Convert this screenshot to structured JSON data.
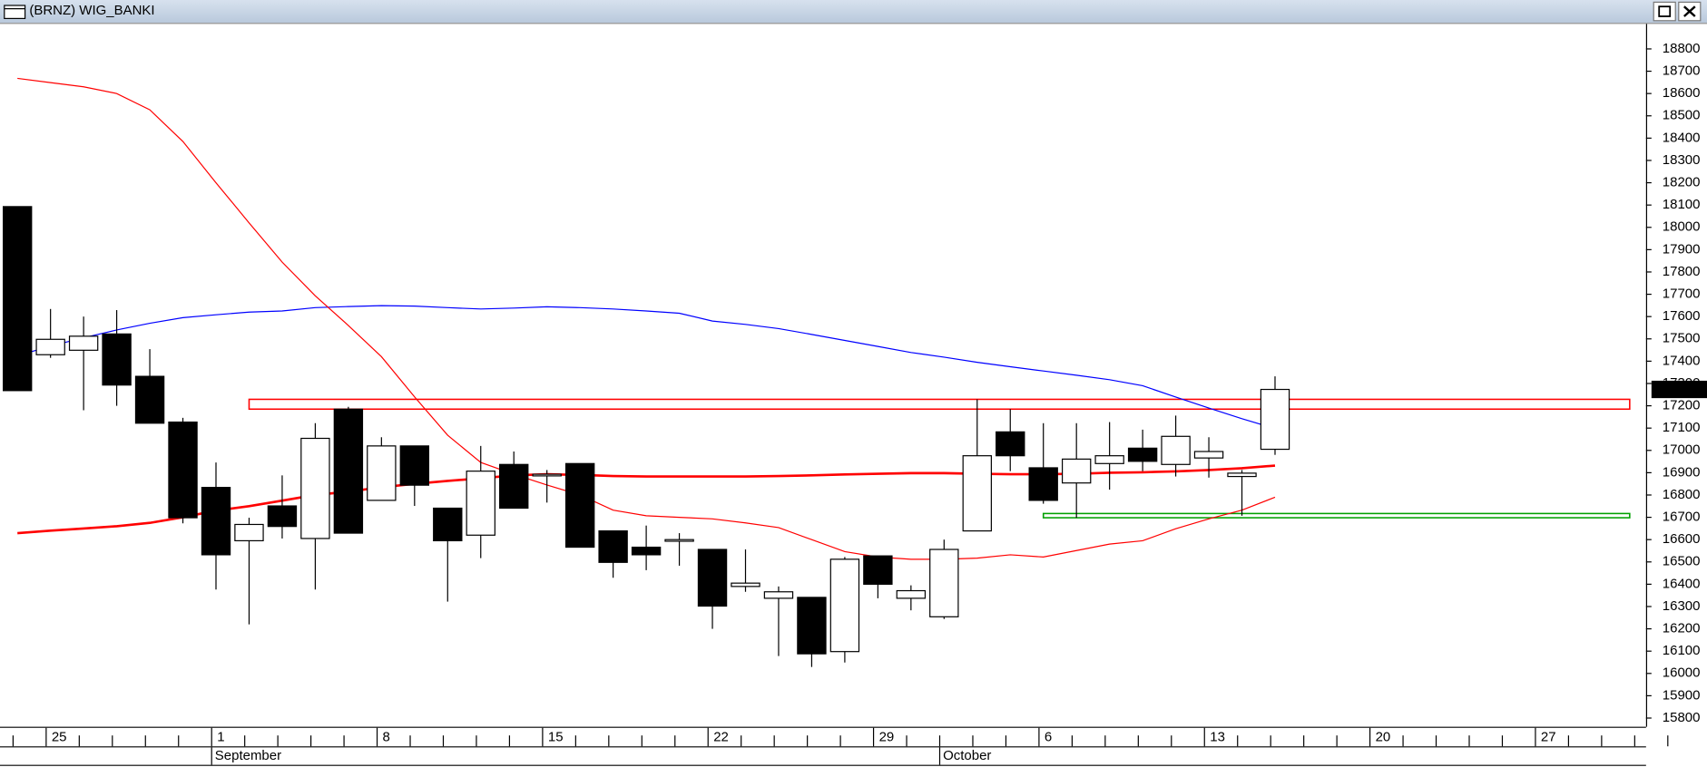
{
  "window": {
    "title": "(BRNZ) WIG_BANKI"
  },
  "chart_data": {
    "type": "candlestick",
    "categories": [
      null,
      "25",
      null,
      null,
      null,
      null,
      "1",
      null,
      null,
      null,
      null,
      "8",
      null,
      null,
      null,
      null,
      "15",
      null,
      null,
      null,
      null,
      "22",
      null,
      null,
      null,
      null,
      "29",
      null,
      null,
      null,
      null,
      "6",
      null,
      null,
      null,
      null,
      "13",
      null,
      null,
      null,
      null,
      "20",
      null,
      null,
      null,
      null,
      "27",
      null,
      null,
      null,
      null
    ],
    "month_labels": [
      null,
      null,
      null,
      null,
      null,
      null,
      "September",
      null,
      null,
      null,
      null,
      null,
      null,
      null,
      null,
      null,
      null,
      null,
      null,
      null,
      null,
      null,
      null,
      null,
      null,
      null,
      null,
      null,
      "October",
      null,
      null,
      null,
      null,
      null,
      null,
      null,
      null,
      null,
      null,
      null,
      null,
      null,
      null,
      null,
      null,
      null,
      null,
      null,
      null,
      null,
      null
    ],
    "open": [
      18093,
      17429,
      17449,
      17522,
      17332,
      17127,
      16834,
      16595,
      16751,
      16605,
      17185,
      16776,
      17020,
      16741,
      16620,
      16937,
      16893,
      16941,
      16639,
      16566,
      16600,
      16556,
      16390,
      16337,
      16341,
      16098,
      16527,
      16337,
      16254,
      16639,
      17083,
      16922,
      16854,
      16941,
      17010,
      16937,
      16966,
      16883,
      17005,
      null,
      null,
      null,
      null,
      null,
      null,
      null,
      null,
      null,
      null,
      null,
      null
    ],
    "high": [
      18093,
      17634,
      17600,
      17629,
      17454,
      17146,
      16946,
      16698,
      16888,
      17122,
      17195,
      17059,
      17020,
      16741,
      17020,
      16995,
      16912,
      16941,
      16639,
      16663,
      16629,
      16556,
      16556,
      16390,
      16341,
      16522,
      16527,
      16395,
      16600,
      17229,
      17185,
      17122,
      17122,
      17127,
      17093,
      17156,
      17059,
      16912,
      17332,
      null,
      null,
      null,
      null,
      null,
      null,
      null,
      null,
      null,
      null,
      null,
      null
    ],
    "low": [
      17268,
      17415,
      17180,
      17200,
      17122,
      16673,
      16376,
      16220,
      16605,
      16376,
      16629,
      16776,
      16751,
      16322,
      16517,
      16741,
      16766,
      16566,
      16429,
      16463,
      16483,
      16200,
      16366,
      16078,
      16029,
      16049,
      16337,
      16283,
      16244,
      16639,
      16907,
      16761,
      16698,
      16824,
      16907,
      16883,
      16878,
      16707,
      16980,
      null,
      null,
      null,
      null,
      null,
      null,
      null,
      null,
      null,
      null,
      null,
      null
    ],
    "close": [
      17268,
      17498,
      17512,
      17293,
      17122,
      16698,
      16532,
      16668,
      16659,
      17054,
      16629,
      17020,
      16844,
      16595,
      16907,
      16741,
      16893,
      16566,
      16498,
      16532,
      16600,
      16302,
      16405,
      16366,
      16088,
      16512,
      16400,
      16371,
      16556,
      16976,
      16976,
      16776,
      16961,
      16976,
      16951,
      17063,
      16995,
      16898,
      17273.36,
      null,
      null,
      null,
      null,
      null,
      null,
      null,
      null,
      null,
      null,
      null,
      null
    ],
    "up_color": "#ffffff",
    "down_color": "#000000",
    "series": [
      {
        "color": "#0000ff",
        "width": 1,
        "values": [
          17424,
          17468,
          17505,
          17540,
          17570,
          17595,
          17608,
          17620,
          17625,
          17640,
          17645,
          17649,
          17647,
          17640,
          17634,
          17638,
          17644,
          17640,
          17634,
          17625,
          17615,
          17580,
          17565,
          17546,
          17520,
          17493,
          17466,
          17439,
          17418,
          17395,
          17375,
          17356,
          17337,
          17317,
          17290,
          17239,
          17190,
          17142,
          17098,
          null,
          null,
          null,
          null,
          null,
          null,
          null,
          null,
          null,
          null,
          null,
          null
        ]
      },
      {
        "color": "#ff0000",
        "width": 2.2,
        "values": [
          16629,
          16640,
          16650,
          16660,
          16675,
          16700,
          16730,
          16750,
          16775,
          16800,
          16815,
          16835,
          16850,
          16863,
          16875,
          16888,
          16893,
          16890,
          16885,
          16883,
          16883,
          16883,
          16883,
          16885,
          16888,
          16892,
          16895,
          16898,
          16898,
          16895,
          16893,
          16893,
          16895,
          16900,
          16902,
          16906,
          16912,
          16920,
          16932,
          null,
          null,
          null,
          null,
          null,
          null,
          null,
          null,
          null,
          null,
          null,
          null
        ]
      },
      {
        "color": "#ff0000",
        "width": 1,
        "values": [
          18668,
          18649,
          18630,
          18600,
          18527,
          18385,
          18200,
          18020,
          17844,
          17693,
          17560,
          17420,
          17240,
          17068,
          16946,
          16893,
          16845,
          16800,
          16732,
          16707,
          16700,
          16693,
          16675,
          16654,
          16600,
          16546,
          16522,
          16512,
          16512,
          16517,
          16532,
          16522,
          16551,
          16580,
          16595,
          16649,
          16693,
          16732,
          16790,
          null,
          null,
          null,
          null,
          null,
          null,
          null,
          null,
          null,
          null,
          null,
          null
        ]
      }
    ],
    "zones": [
      {
        "color": "#ff0000",
        "low": 17185,
        "high": 17229,
        "start": 7
      },
      {
        "color": "#00a000",
        "low": 16698,
        "high": 16717,
        "start": 31
      }
    ],
    "last_price": 17273.36,
    "last_price_color": "#00ff00",
    "ylim": [
      15761,
      18912
    ],
    "yticks": [
      15800,
      15900,
      16000,
      16100,
      16200,
      16300,
      16400,
      16500,
      16600,
      16700,
      16800,
      16900,
      17000,
      17100,
      17200,
      17300,
      17400,
      17500,
      17600,
      17700,
      17800,
      17900,
      18000,
      18100,
      18200,
      18300,
      18400,
      18500,
      18600,
      18700,
      18800
    ]
  }
}
